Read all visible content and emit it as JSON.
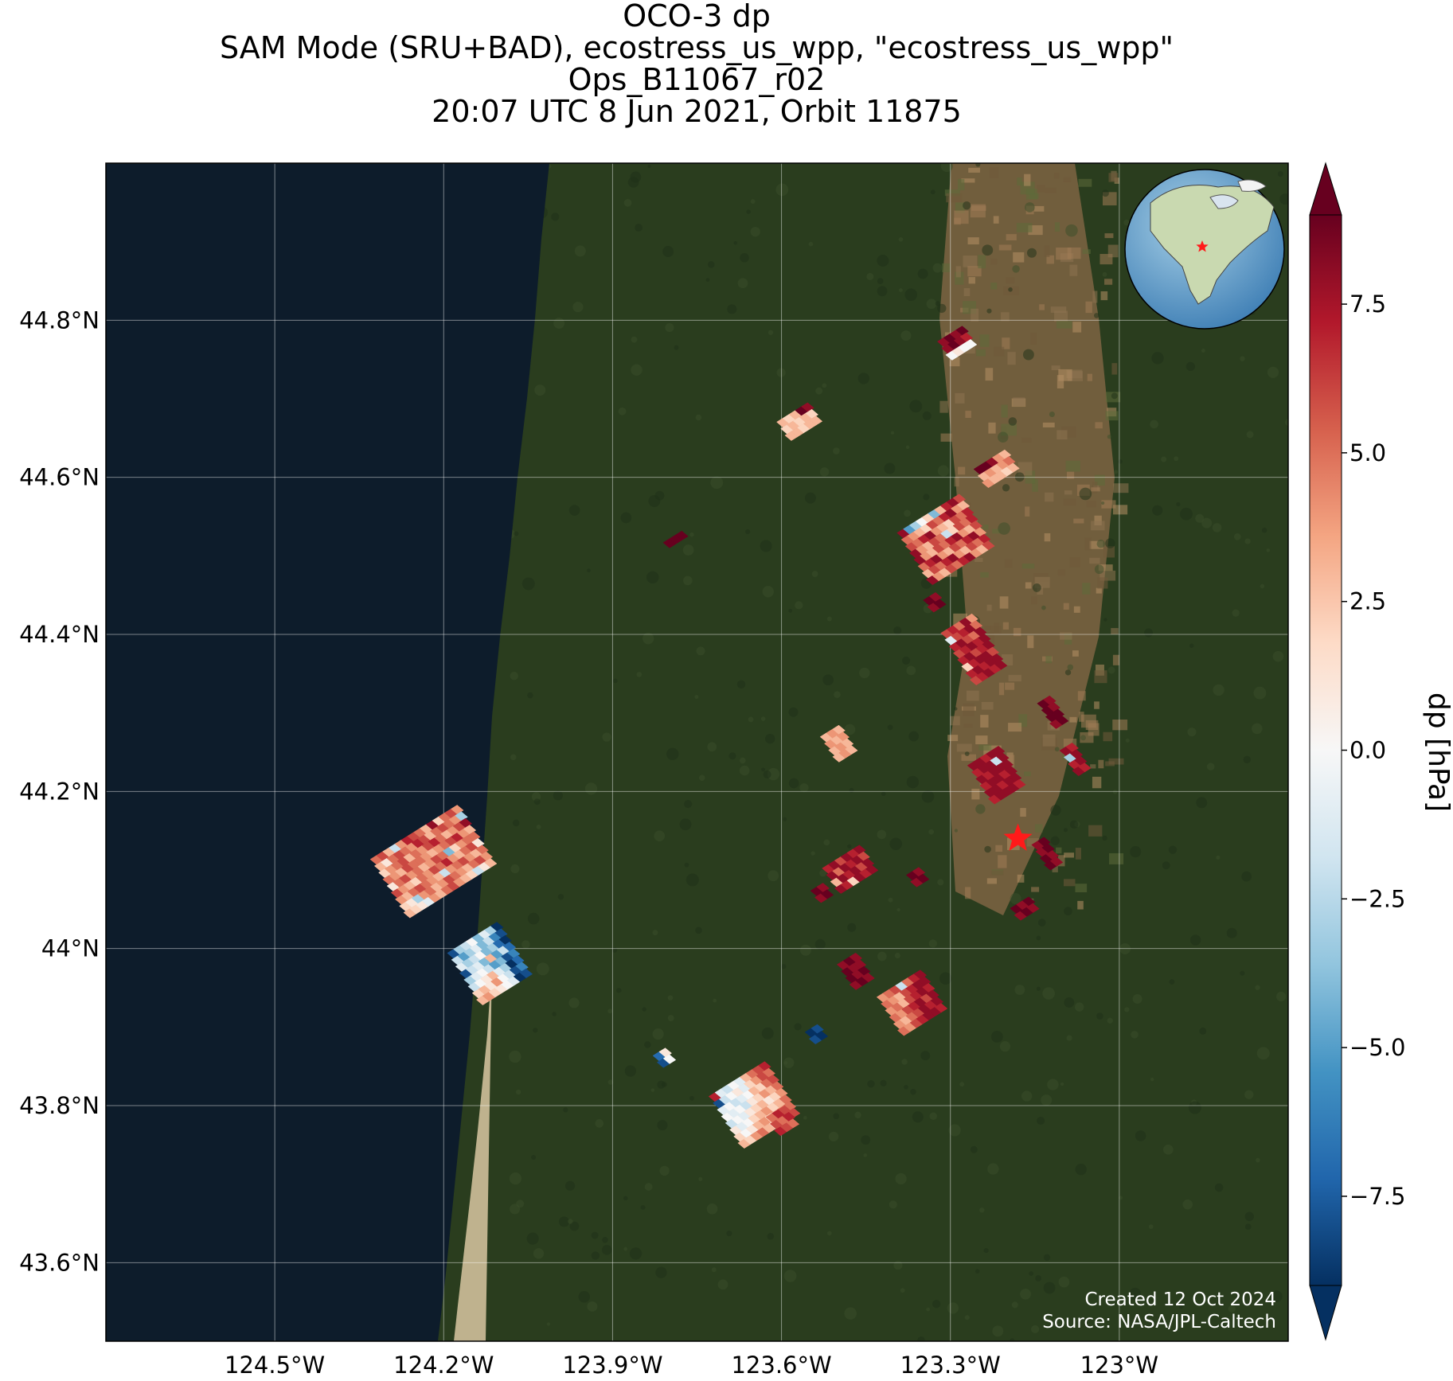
{
  "title": {
    "line1": "OCO-3 dp",
    "line2": "SAM Mode (SRU+BAD), ecostress_us_wpp, \"ecostress_us_wpp\"",
    "line3": "Ops_B11067_r02",
    "line4": "20:07 UTC 8 Jun 2021, Orbit 11875"
  },
  "map": {
    "lon_range": [
      -124.8,
      -122.7
    ],
    "lat_range": [
      43.5,
      45.0
    ],
    "lon_ticks": [
      {
        "value": -124.5,
        "label": "124.5°W"
      },
      {
        "value": -124.2,
        "label": "124.2°W"
      },
      {
        "value": -123.9,
        "label": "123.9°W"
      },
      {
        "value": -123.6,
        "label": "123.6°W"
      },
      {
        "value": -123.3,
        "label": "123.3°W"
      },
      {
        "value": -123.0,
        "label": "123°W"
      }
    ],
    "lat_ticks": [
      {
        "value": 44.8,
        "label": "44.8°N"
      },
      {
        "value": 44.6,
        "label": "44.6°N"
      },
      {
        "value": 44.4,
        "label": "44.4°N"
      },
      {
        "value": 44.2,
        "label": "44.2°N"
      },
      {
        "value": 44.0,
        "label": "44°N"
      },
      {
        "value": 43.8,
        "label": "43.8°N"
      },
      {
        "value": 43.6,
        "label": "43.6°N"
      }
    ],
    "target_marker": {
      "lon": -123.18,
      "lat": 44.14,
      "color": "#ff1a1a"
    },
    "ocean_color": "#0d1c2b",
    "land_color": "#2a3d1e",
    "farmland_color": "#8a6a48",
    "icons": [
      "target-star-icon",
      "locator-globe-icon"
    ]
  },
  "colorbar": {
    "label": "dp [hPa]",
    "range": [
      -9,
      9
    ],
    "ticks": [
      {
        "value": 7.5,
        "label": "7.5"
      },
      {
        "value": 5.0,
        "label": "5.0"
      },
      {
        "value": 2.5,
        "label": "2.5"
      },
      {
        "value": 0.0,
        "label": "0.0"
      },
      {
        "value": -2.5,
        "label": "−2.5"
      },
      {
        "value": -5.0,
        "label": "−5.0"
      },
      {
        "value": -7.5,
        "label": "−7.5"
      }
    ],
    "colors": [
      "#053061",
      "#2166ac",
      "#4393c3",
      "#92c5de",
      "#d1e5f0",
      "#f7f7f7",
      "#fddbc7",
      "#f4a582",
      "#d6604d",
      "#b2182b",
      "#67001f"
    ]
  },
  "credits": {
    "line1": "Created 12 Oct 2024",
    "line2": "Source: NASA/JPL-Caltech"
  },
  "chart_data": {
    "type": "heatmap",
    "variable": "dp [hPa]",
    "cmap_range": [
      -9,
      9
    ],
    "clusters": [
      {
        "lon": -124.22,
        "lat": 44.11,
        "dlon": 0.013,
        "dlat": 0.01,
        "cols": 14,
        "rows": 9,
        "values": [
          5,
          6,
          3,
          -2,
          4,
          7,
          6,
          5,
          3,
          8,
          2,
          5,
          6,
          4,
          3,
          1,
          5,
          6,
          5,
          4,
          7,
          6,
          3,
          5,
          6,
          5,
          4,
          -3,
          2,
          4,
          5,
          6,
          3,
          5,
          4,
          6,
          7,
          5,
          3,
          4,
          6,
          8,
          5,
          4,
          3,
          6,
          5,
          5,
          4,
          3,
          4,
          5,
          6,
          7,
          4,
          3,
          1,
          5,
          6,
          4,
          5,
          3,
          4,
          6,
          5,
          -4,
          2,
          4,
          5,
          5,
          6,
          4,
          3,
          2,
          5,
          4,
          6,
          5,
          7,
          4,
          3,
          5,
          6,
          1,
          4,
          3,
          5,
          6,
          5,
          4,
          3,
          -2,
          4,
          5,
          6,
          4,
          3,
          5,
          2,
          1,
          -3,
          4,
          5,
          3,
          4,
          6,
          5,
          4,
          3,
          5,
          6,
          4,
          3,
          2,
          1,
          -1,
          4,
          3,
          5,
          6,
          4,
          3,
          2,
          -2,
          1,
          3
        ]
      },
      {
        "lon": -124.12,
        "lat": 43.98,
        "dlon": 0.013,
        "dlat": 0.01,
        "cols": 8,
        "rows": 8,
        "values": [
          -8,
          -3,
          -2,
          0,
          -4,
          -1,
          -3,
          -9,
          -2,
          -5,
          -3,
          -1,
          -4,
          -2,
          -6,
          -8,
          -1,
          -3,
          -2,
          0,
          -4,
          -3,
          -7,
          -9,
          -8,
          -2,
          -1,
          -4,
          3,
          -5,
          -2,
          -7,
          -3,
          -1,
          0,
          -2,
          -5,
          -4,
          -8,
          -6,
          -2,
          0,
          1,
          3,
          -1,
          -3,
          -9,
          -7,
          2,
          3,
          1,
          4,
          0,
          -2,
          -8,
          -6,
          3,
          4,
          2,
          1,
          0,
          -1,
          -9,
          -8
        ]
      },
      {
        "lon": -123.31,
        "lat": 44.52,
        "dlon": 0.013,
        "dlat": 0.01,
        "cols": 10,
        "rows": 8,
        "values": [
          8,
          -5,
          -3,
          0,
          2,
          -4,
          3,
          7,
          8,
          6,
          5,
          4,
          3,
          2,
          6,
          5,
          7,
          8,
          4,
          3,
          6,
          5,
          7,
          8,
          4,
          3,
          2,
          6,
          5,
          7,
          8,
          4,
          3,
          6,
          5,
          -2,
          2,
          6,
          5,
          7,
          8,
          4,
          3,
          6,
          5,
          7,
          8,
          4,
          3,
          6,
          5,
          7,
          8,
          4,
          3,
          6,
          5,
          7,
          8,
          4,
          3,
          6,
          5,
          7,
          8,
          4,
          3,
          6,
          5,
          7,
          8,
          4,
          3,
          6,
          5,
          7,
          8,
          4,
          3,
          6
        ]
      },
      {
        "lon": -123.26,
        "lat": 44.38,
        "dlon": 0.013,
        "dlat": 0.01,
        "cols": 5,
        "rows": 8,
        "values": [
          6,
          7,
          5,
          8,
          4,
          -1,
          6,
          7,
          8,
          5,
          7,
          8,
          6,
          5,
          8,
          6,
          7,
          8,
          7,
          8,
          7,
          8,
          6,
          7,
          8,
          2,
          7,
          8,
          8,
          6,
          7,
          8,
          7,
          8,
          8,
          6,
          7,
          8,
          7,
          8
        ]
      },
      {
        "lon": -123.22,
        "lat": 44.22,
        "dlon": 0.013,
        "dlat": 0.01,
        "cols": 5,
        "rows": 6,
        "values": [
          8,
          8,
          7,
          8,
          8,
          7,
          8,
          8,
          -2,
          8,
          8,
          7,
          8,
          8,
          8,
          7,
          8,
          8,
          7,
          8,
          8,
          8,
          7,
          8,
          8,
          7,
          8,
          8,
          8,
          7
        ]
      },
      {
        "lon": -123.48,
        "lat": 44.1,
        "dlon": 0.013,
        "dlat": 0.01,
        "cols": 6,
        "rows": 4,
        "values": [
          7,
          8,
          6,
          8,
          7,
          8,
          8,
          5,
          8,
          7,
          8,
          6,
          3,
          8,
          7,
          8,
          6,
          8,
          8,
          7,
          2,
          8,
          7,
          8
        ]
      },
      {
        "lon": -123.37,
        "lat": 43.93,
        "dlon": 0.013,
        "dlat": 0.01,
        "cols": 7,
        "rows": 6,
        "values": [
          4,
          5,
          6,
          -2,
          5,
          7,
          8,
          5,
          4,
          3,
          6,
          7,
          8,
          8,
          4,
          5,
          3,
          6,
          7,
          8,
          7,
          5,
          4,
          6,
          7,
          8,
          6,
          8,
          4,
          3,
          5,
          6,
          8,
          7,
          8,
          5,
          4,
          6,
          7,
          8,
          8,
          7
        ]
      },
      {
        "lon": -123.65,
        "lat": 43.8,
        "dlon": 0.013,
        "dlat": 0.01,
        "cols": 9,
        "rows": 8,
        "values": [
          7,
          -1,
          -2,
          0,
          -1,
          3,
          5,
          6,
          7,
          -8,
          -2,
          0,
          1,
          -1,
          2,
          4,
          6,
          5,
          -1,
          0,
          -2,
          -1,
          0,
          3,
          2,
          5,
          6,
          0,
          -1,
          0,
          -2,
          1,
          2,
          4,
          3,
          5,
          -2,
          0,
          -1,
          1,
          2,
          3,
          1,
          2,
          4,
          1,
          -1,
          0,
          2,
          3,
          4,
          2,
          3,
          5,
          2,
          0,
          1,
          3,
          4,
          2,
          3,
          4,
          5,
          3,
          2,
          4,
          5,
          3,
          2,
          4,
          5,
          6
        ]
      },
      {
        "lon": -123.57,
        "lat": 44.67,
        "dlon": 0.013,
        "dlat": 0.01,
        "cols": 5,
        "rows": 3,
        "values": [
          3,
          2,
          3,
          9,
          8,
          2,
          3,
          2,
          3,
          2,
          3,
          3,
          2,
          3,
          3
        ]
      },
      {
        "lon": -123.29,
        "lat": 44.77,
        "dlon": 0.013,
        "dlat": 0.01,
        "cols": 4,
        "rows": 3,
        "values": [
          8,
          9,
          8,
          9,
          8,
          9,
          8,
          7,
          0,
          1,
          0,
          0
        ]
      },
      {
        "lon": -123.22,
        "lat": 44.61,
        "dlon": 0.013,
        "dlat": 0.01,
        "cols": 5,
        "rows": 3,
        "values": [
          9,
          9,
          8,
          4,
          3,
          3,
          4,
          3,
          4,
          5,
          4,
          3,
          3,
          2,
          3
        ]
      },
      {
        "lon": -123.5,
        "lat": 44.26,
        "dlon": 0.013,
        "dlat": 0.01,
        "cols": 3,
        "rows": 4,
        "values": [
          3,
          4,
          3,
          4,
          3,
          4,
          3,
          4,
          3,
          3,
          4,
          3
        ]
      },
      {
        "lon": -123.08,
        "lat": 44.24,
        "dlon": 0.013,
        "dlat": 0.01,
        "cols": 2,
        "rows": 4,
        "values": [
          8,
          7,
          -3,
          8,
          7,
          8,
          8,
          7
        ]
      },
      {
        "lon": -123.13,
        "lat": 44.12,
        "dlon": 0.013,
        "dlat": 0.01,
        "cols": 2,
        "rows": 4,
        "values": [
          8,
          9,
          8,
          9,
          9,
          8,
          9,
          8
        ]
      },
      {
        "lon": -123.17,
        "lat": 44.05,
        "dlon": 0.013,
        "dlat": 0.01,
        "cols": 3,
        "rows": 2,
        "values": [
          9,
          8,
          9,
          8,
          9,
          8
        ]
      },
      {
        "lon": -123.12,
        "lat": 44.3,
        "dlon": 0.013,
        "dlat": 0.01,
        "cols": 2,
        "rows": 4,
        "values": [
          9,
          8,
          9,
          8,
          9,
          9,
          8,
          9
        ]
      },
      {
        "lon": -123.47,
        "lat": 43.97,
        "dlon": 0.013,
        "dlat": 0.01,
        "cols": 3,
        "rows": 4,
        "values": [
          8,
          9,
          8,
          9,
          8,
          8,
          9,
          8,
          9,
          8,
          9,
          8
        ]
      },
      {
        "lon": -123.79,
        "lat": 44.52,
        "dlon": 0.013,
        "dlat": 0.01,
        "cols": 3,
        "rows": 1,
        "values": [
          9,
          9,
          9
        ]
      },
      {
        "lon": -123.54,
        "lat": 43.89,
        "dlon": 0.013,
        "dlat": 0.01,
        "cols": 2,
        "rows": 2,
        "values": [
          -9,
          -8,
          -8,
          -9
        ]
      },
      {
        "lon": -123.81,
        "lat": 43.86,
        "dlon": 0.013,
        "dlat": 0.01,
        "cols": 2,
        "rows": 2,
        "values": [
          -7,
          1,
          -8,
          0
        ]
      },
      {
        "lon": -123.6,
        "lat": 43.78,
        "dlon": 0.013,
        "dlat": 0.01,
        "cols": 3,
        "rows": 3,
        "values": [
          5,
          7,
          6,
          6,
          5,
          7,
          7,
          6,
          5
        ]
      },
      {
        "lon": -123.36,
        "lat": 44.09,
        "dlon": 0.013,
        "dlat": 0.01,
        "cols": 2,
        "rows": 2,
        "values": [
          9,
          8,
          8,
          9
        ]
      },
      {
        "lon": -123.33,
        "lat": 44.44,
        "dlon": 0.013,
        "dlat": 0.01,
        "cols": 2,
        "rows": 2,
        "values": [
          9,
          8,
          8,
          9
        ]
      },
      {
        "lon": -123.53,
        "lat": 44.07,
        "dlon": 0.013,
        "dlat": 0.01,
        "cols": 2,
        "rows": 2,
        "values": [
          9,
          8,
          8,
          9
        ]
      }
    ]
  }
}
